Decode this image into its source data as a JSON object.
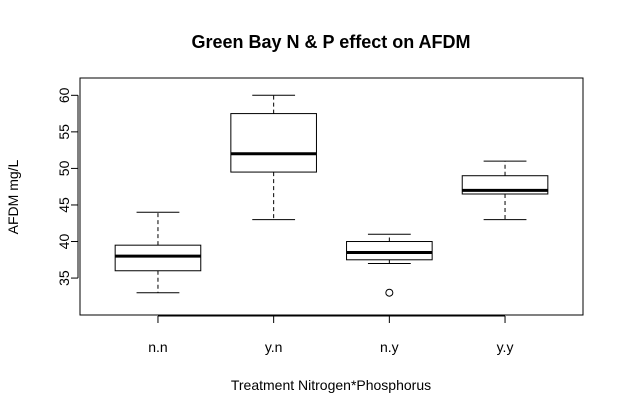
{
  "chart_data": {
    "type": "boxplot",
    "title": "Green Bay N & P effect on AFDM",
    "xlabel": "Treatment Nitrogen*Phosphorus",
    "ylabel": "AFDM mg/L",
    "categories": [
      "n.n",
      "y.n",
      "n.y",
      "y.y"
    ],
    "ylim": [
      32,
      61
    ],
    "yticks": [
      35,
      40,
      45,
      50,
      55,
      60
    ],
    "grid": false,
    "boxes": [
      {
        "category": "n.n",
        "whisker_low": 33,
        "q1": 36,
        "median": 38,
        "q3": 39.5,
        "whisker_high": 44,
        "outliers": []
      },
      {
        "category": "y.n",
        "whisker_low": 43,
        "q1": 49.5,
        "median": 52,
        "q3": 57.5,
        "whisker_high": 60,
        "outliers": []
      },
      {
        "category": "n.y",
        "whisker_low": 37,
        "q1": 37.5,
        "median": 38.5,
        "q3": 40,
        "whisker_high": 41,
        "outliers": [
          33
        ]
      },
      {
        "category": "y.y",
        "whisker_low": 43,
        "q1": 46.5,
        "median": 47,
        "q3": 49,
        "whisker_high": 51,
        "outliers": []
      }
    ]
  }
}
